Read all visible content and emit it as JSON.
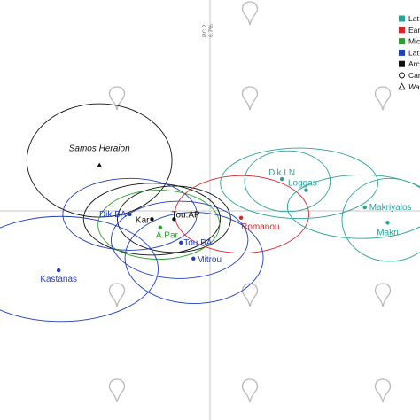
{
  "chart_data": {
    "type": "scatter",
    "title": "",
    "xlabel": "",
    "ylabel": "PC 2",
    "ylabel_detail": "6.7%",
    "xlim": [
      -3.0,
      3.0
    ],
    "ylim": [
      -3.0,
      3.0
    ],
    "grid": false,
    "legend_placement": "top-right",
    "legend": [
      {
        "label": "Lat",
        "color": "#2aa198",
        "marker": "square"
      },
      {
        "label": "Ear",
        "color": "#d62728",
        "marker": "square"
      },
      {
        "label": "Mic",
        "color": "#2ca02c",
        "marker": "square"
      },
      {
        "label": "Lat",
        "color": "#1f3fbf",
        "marker": "square"
      },
      {
        "label": "Arc",
        "color": "#111111",
        "marker": "square"
      },
      {
        "label": "Car",
        "color": "#111111",
        "marker": "circle"
      },
      {
        "label": "Wa",
        "color": "#111111",
        "marker": "triangle",
        "italic": true
      }
    ],
    "points": [
      {
        "label": "Samos Heraion",
        "x": -1.6,
        "y": 0.66,
        "color": "#111111",
        "marker": "triangle",
        "italic": true
      },
      {
        "label": "Dik.BA",
        "x": -1.16,
        "y": -0.05,
        "color": "#1f3fbf",
        "marker": "circle"
      },
      {
        "label": "Kar",
        "x": -0.84,
        "y": -0.12,
        "color": "#111111",
        "marker": "circle"
      },
      {
        "label": "A.Par",
        "x": -0.72,
        "y": -0.24,
        "color": "#2ca02c",
        "marker": "circle"
      },
      {
        "label": "Tou.AP",
        "x": -0.52,
        "y": -0.12,
        "color": "#111111",
        "marker": "circle"
      },
      {
        "label": "Tou.BA",
        "x": -0.42,
        "y": -0.46,
        "color": "#1f3fbf",
        "marker": "circle"
      },
      {
        "label": "Mitrou",
        "x": -0.24,
        "y": -0.69,
        "color": "#1f3fbf",
        "marker": "circle"
      },
      {
        "label": "Kastanas",
        "x": -2.19,
        "y": -0.86,
        "color": "#1f3fbf",
        "marker": "circle"
      },
      {
        "label": "Romanou",
        "x": 0.45,
        "y": -0.1,
        "color": "#d62728",
        "marker": "circle"
      },
      {
        "label": "Dik.LN",
        "x": 1.04,
        "y": 0.46,
        "color": "#2aa198",
        "marker": "circle"
      },
      {
        "label": "Loggas",
        "x": 1.39,
        "y": 0.3,
        "color": "#2aa198",
        "marker": "circle"
      },
      {
        "label": "Makriyalos",
        "x": 2.24,
        "y": 0.05,
        "color": "#2aa198",
        "marker": "circle"
      },
      {
        "label": "Makri",
        "x": 2.57,
        "y": -0.17,
        "color": "#2aa198",
        "marker": "circle"
      }
    ],
    "ellipses": [
      {
        "group": "Samos Heraion",
        "cx": -1.6,
        "cy": 0.73,
        "rx": 1.05,
        "ry": 0.82,
        "color": "#111111"
      },
      {
        "group": "Kar",
        "cx": -0.84,
        "cy": -0.12,
        "rx": 0.99,
        "ry": 0.52,
        "color": "#111111"
      },
      {
        "group": "Tou.AP",
        "cx": -0.52,
        "cy": -0.12,
        "rx": 0.82,
        "ry": 0.48,
        "color": "#111111"
      },
      {
        "group": "A.Par",
        "cx": -0.74,
        "cy": -0.2,
        "rx": 0.88,
        "ry": 0.5,
        "color": "#2ca02c"
      },
      {
        "group": "Dik.BA",
        "cx": -1.16,
        "cy": -0.05,
        "rx": 0.97,
        "ry": 0.52,
        "color": "#1f3fbf"
      },
      {
        "group": "Tou.BA",
        "cx": -0.44,
        "cy": -0.42,
        "rx": 0.99,
        "ry": 0.56,
        "color": "#1f3fbf"
      },
      {
        "group": "Mitrou",
        "cx": -0.23,
        "cy": -0.68,
        "rx": 1.0,
        "ry": 0.66,
        "color": "#1f3fbf"
      },
      {
        "group": "Kastanas",
        "cx": -2.16,
        "cy": -0.84,
        "rx": 1.41,
        "ry": 0.76,
        "color": "#1f3fbf"
      },
      {
        "group": "Romanou",
        "cx": 0.46,
        "cy": -0.05,
        "rx": 0.97,
        "ry": 0.56,
        "color": "#d62728"
      },
      {
        "group": "Dik.LN",
        "cx": 1.12,
        "cy": 0.43,
        "rx": 0.62,
        "ry": 0.44,
        "color": "#2aa198"
      },
      {
        "group": "Loggas",
        "cx": 1.29,
        "cy": 0.4,
        "rx": 1.14,
        "ry": 0.51,
        "color": "#2aa198"
      },
      {
        "group": "Makriyalos",
        "cx": 2.2,
        "cy": 0.06,
        "rx": 1.08,
        "ry": 0.46,
        "color": "#2aa198"
      },
      {
        "group": "Makri",
        "cx": 2.6,
        "cy": -0.13,
        "rx": 0.69,
        "ry": 0.6,
        "color": "#2aa198"
      }
    ]
  }
}
